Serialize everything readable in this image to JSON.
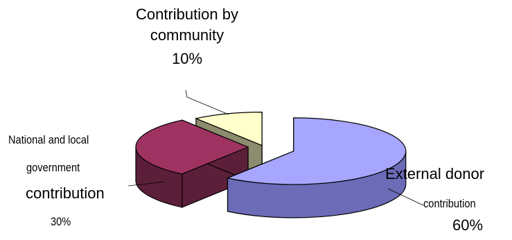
{
  "chart_data": {
    "type": "pie",
    "subtype": "3d-exploded",
    "slices": [
      {
        "label_lines": [
          "External donor",
          "contribution"
        ],
        "percent_label": "60%",
        "value": 60,
        "color": "#a6a6ff",
        "side_color": "#6b6bb8"
      },
      {
        "label_lines": [
          "National and local",
          "government",
          "contribution"
        ],
        "percent_label": "30%",
        "value": 30,
        "color": "#9e3361",
        "side_color": "#5c1f3a"
      },
      {
        "label_lines": [
          "Contribution by",
          "community"
        ],
        "percent_label": "10%",
        "value": 10,
        "color": "#ffffcc",
        "side_color": "#8c8c6e"
      }
    ],
    "legend": "none",
    "outline_color": "#000000"
  }
}
